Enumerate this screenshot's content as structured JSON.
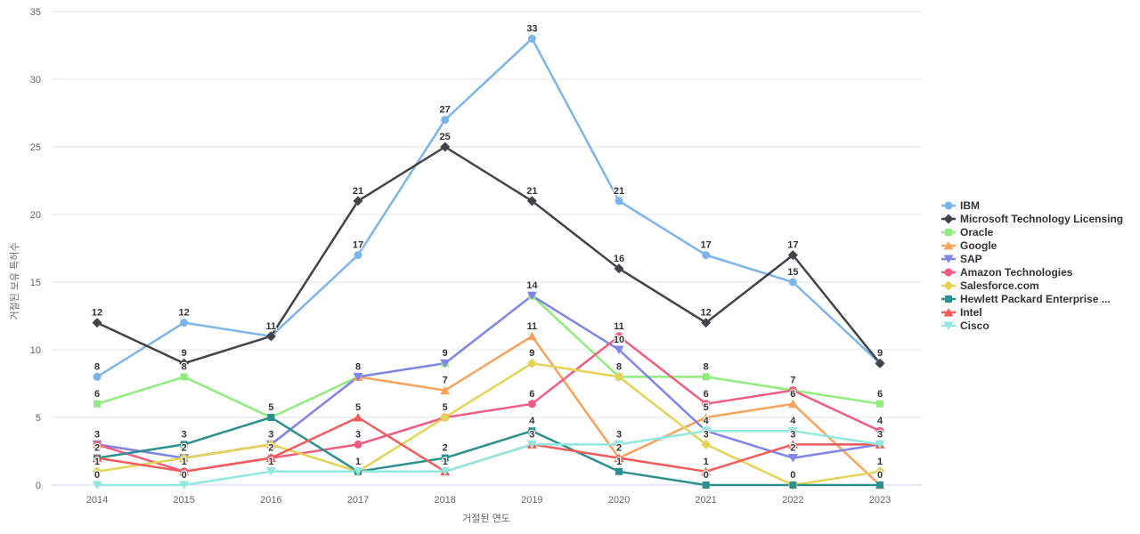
{
  "chart_data": {
    "type": "line",
    "title": "",
    "xlabel": "거절된 연도",
    "ylabel": "거절된 보유 특허수",
    "x": [
      2014,
      2015,
      2016,
      2017,
      2018,
      2019,
      2020,
      2021,
      2022,
      2023
    ],
    "ylim": [
      0,
      35
    ],
    "yticks": [
      0,
      5,
      10,
      15,
      20,
      25,
      30,
      35
    ],
    "grid": "horizontal",
    "legend_position": "right-middle",
    "axis_line_color": "#ccd6eb",
    "gridline_color": "#e6e6e6",
    "series": [
      {
        "name": "IBM",
        "color": "#7cb5ec",
        "marker": "circle",
        "values": [
          8,
          12,
          11,
          17,
          27,
          33,
          21,
          17,
          15,
          9
        ]
      },
      {
        "name": "Microsoft Technology Licensing",
        "color": "#434348",
        "marker": "diamond",
        "values": [
          12,
          9,
          11,
          21,
          25,
          21,
          16,
          12,
          17,
          9
        ]
      },
      {
        "name": "Oracle",
        "color": "#90ed7d",
        "marker": "square",
        "values": [
          6,
          8,
          5,
          8,
          9,
          14,
          8,
          8,
          7,
          6
        ]
      },
      {
        "name": "Google",
        "color": "#f7a35c",
        "marker": "triangle",
        "values": [
          3,
          2,
          3,
          8,
          7,
          11,
          2,
          5,
          6,
          0
        ]
      },
      {
        "name": "SAP",
        "color": "#8085e9",
        "marker": "triangle-down",
        "values": [
          3,
          2,
          3,
          8,
          9,
          14,
          10,
          4,
          2,
          3
        ]
      },
      {
        "name": "Amazon Technologies",
        "color": "#f15c80",
        "marker": "circle",
        "values": [
          3,
          1,
          2,
          3,
          5,
          6,
          11,
          6,
          7,
          4
        ]
      },
      {
        "name": "Salesforce.com",
        "color": "#e4d354",
        "marker": "diamond",
        "values": [
          1,
          2,
          3,
          1,
          5,
          9,
          8,
          3,
          0,
          1
        ]
      },
      {
        "name": "Hewlett Packard Enterprise ...",
        "color": "#2b908f",
        "marker": "square",
        "values": [
          2,
          3,
          5,
          1,
          2,
          4,
          1,
          0,
          0,
          0
        ]
      },
      {
        "name": "Intel",
        "color": "#f45b5b",
        "marker": "triangle",
        "values": [
          2,
          1,
          2,
          5,
          1,
          3,
          2,
          1,
          3,
          3
        ]
      },
      {
        "name": "Cisco",
        "color": "#91e8e1",
        "marker": "triangle-down",
        "values": [
          0,
          0,
          1,
          1,
          1,
          3,
          3,
          4,
          4,
          3
        ]
      }
    ]
  }
}
